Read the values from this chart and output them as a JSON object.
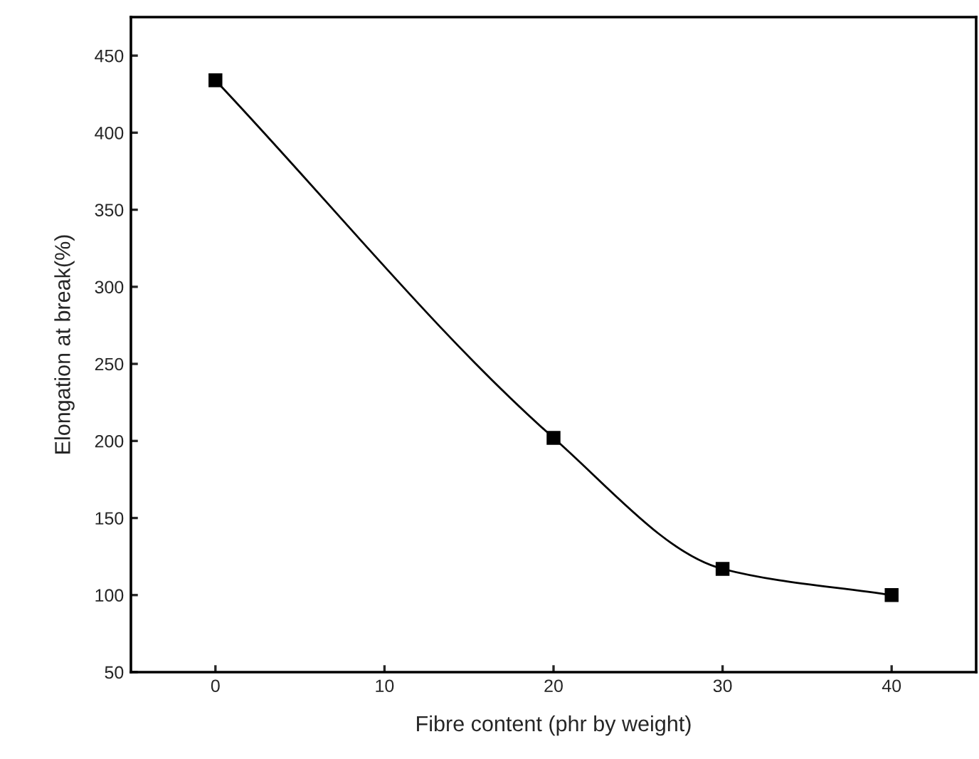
{
  "chart_data": {
    "type": "line",
    "xlabel": "Fibre content (phr by weight)",
    "ylabel": "Elongation at break(%)",
    "x": [
      0,
      20,
      30,
      40
    ],
    "series": [
      {
        "color": "#000000",
        "values": [
          434,
          202,
          117,
          100
        ]
      }
    ],
    "marker": "square",
    "line_style": "solid",
    "xlim": [
      -5,
      45
    ],
    "xticks": [
      0,
      10,
      20,
      30,
      40
    ],
    "ylim": [
      50,
      475
    ],
    "yticks": [
      50,
      100,
      150,
      200,
      250,
      300,
      350,
      400,
      450
    ],
    "grid": false,
    "legend": false
  }
}
